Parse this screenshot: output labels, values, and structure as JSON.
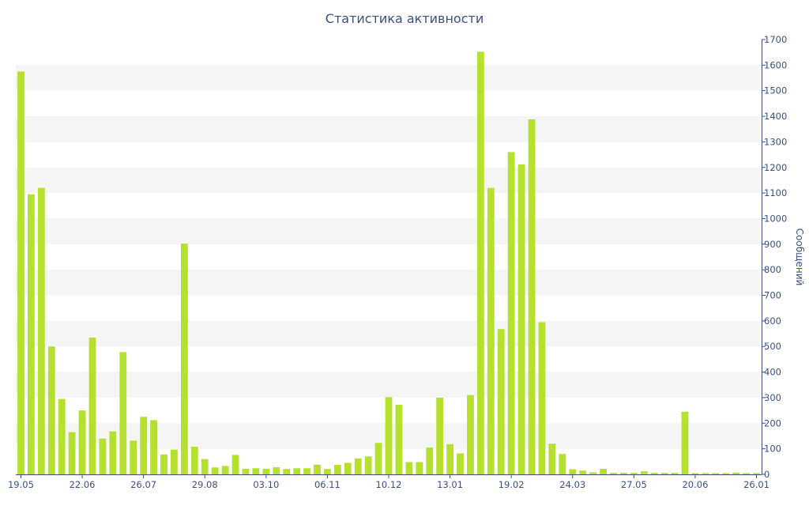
{
  "chart_data": {
    "type": "bar",
    "title": "Статистика активности",
    "xlabel": "",
    "ylabel": "Сообщений",
    "ylim": [
      0,
      1700
    ],
    "ytick_step": 100,
    "axis_side": "right",
    "grid": "alternating horizontal bands",
    "bar_color": "#b5e02e",
    "band_color": "#f5f5f5",
    "text_color": "#3d4f82",
    "x_tick_labels": [
      {
        "index": 0,
        "label": "19.05"
      },
      {
        "index": 6,
        "label": "22.06"
      },
      {
        "index": 12,
        "label": "26.07"
      },
      {
        "index": 18,
        "label": "29.08"
      },
      {
        "index": 24,
        "label": "03.10"
      },
      {
        "index": 30,
        "label": "06.11"
      },
      {
        "index": 36,
        "label": "10.12"
      },
      {
        "index": 42,
        "label": "13.01"
      },
      {
        "index": 48,
        "label": "19.02"
      },
      {
        "index": 54,
        "label": "24.03"
      },
      {
        "index": 60,
        "label": "27.05"
      },
      {
        "index": 66,
        "label": "20.06"
      },
      {
        "index": 72,
        "label": "26.01"
      }
    ],
    "values": [
      1575,
      1095,
      1120,
      500,
      295,
      165,
      250,
      535,
      140,
      168,
      478,
      132,
      225,
      212,
      78,
      97,
      902,
      108,
      60,
      27,
      33,
      76,
      22,
      24,
      22,
      28,
      21,
      24,
      24,
      38,
      21,
      37,
      45,
      62,
      70,
      123,
      302,
      272,
      48,
      48,
      105,
      300,
      118,
      82,
      310,
      1652,
      1120,
      568,
      1260,
      1212,
      1388,
      595,
      120,
      80,
      20,
      15,
      8,
      22,
      6,
      6,
      6,
      12,
      6,
      6,
      6,
      245,
      5,
      5,
      5,
      5,
      7,
      5,
      5
    ]
  }
}
